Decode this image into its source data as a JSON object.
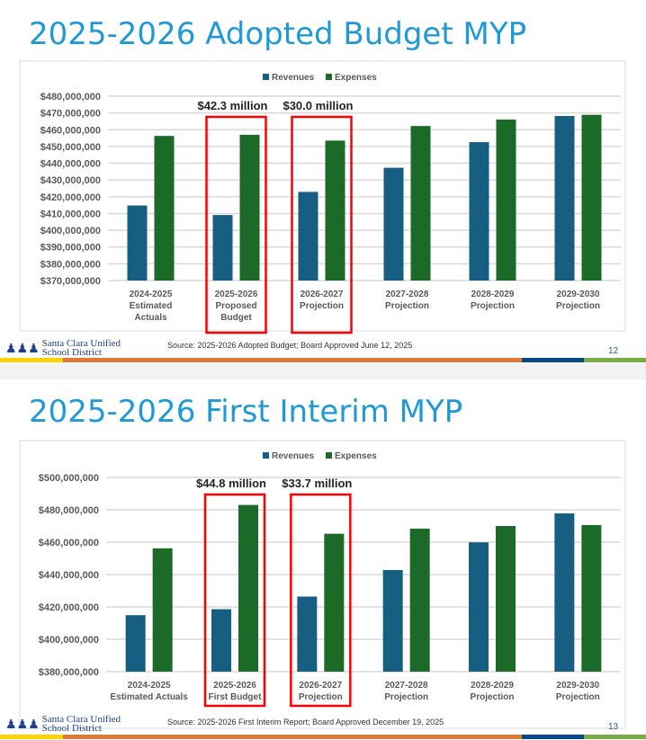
{
  "colors": {
    "revenues": "#165e82",
    "expenses": "#1b6a27",
    "highlight": "#ff0000",
    "title": "#1f9ad6"
  },
  "footer": {
    "logo_line1": "Santa Clara Unified",
    "logo_line2": "School District"
  },
  "slides": [
    {
      "title": "2025-2026 Adopted Budget MYP",
      "source": "Source:  2025-2026 Adopted Budget; Board Approved June 12, 2025",
      "page": "12"
    },
    {
      "title": "2025-2026 First Interim MYP",
      "source": "Source:  2025-2026 First Interim Report; Board Approved December 19, 2025",
      "page": "13"
    }
  ],
  "chart_data": [
    {
      "type": "bar",
      "legend_position": "top",
      "grid": true,
      "categories": [
        [
          "2024-2025",
          "Estimated",
          "Actuals"
        ],
        [
          "2025-2026",
          "Proposed",
          "Budget"
        ],
        [
          "2026-2027",
          "Projection"
        ],
        [
          "2027-2028",
          "Projection"
        ],
        [
          "2028-2029",
          "Projection"
        ],
        [
          "2029-2030",
          "Projection"
        ]
      ],
      "ylim": [
        370000000,
        480000000
      ],
      "yticks": [
        "$370,000,000",
        "$380,000,000",
        "$390,000,000",
        "$400,000,000",
        "$410,000,000",
        "$420,000,000",
        "$430,000,000",
        "$440,000,000",
        "$450,000,000",
        "$460,000,000",
        "$470,000,000",
        "$480,000,000"
      ],
      "series": [
        {
          "name": "Revenues",
          "values": [
            414800000,
            409100000,
            422900000,
            437300000,
            452600000,
            468200000
          ]
        },
        {
          "name": "Expenses",
          "values": [
            456300000,
            457000000,
            453500000,
            462200000,
            466100000,
            468900000
          ]
        }
      ],
      "annotations": [
        {
          "category_index": 1,
          "text": "$42.3 million"
        },
        {
          "category_index": 2,
          "text": "$30.0 million"
        }
      ]
    },
    {
      "type": "bar",
      "legend_position": "top",
      "grid": true,
      "categories": [
        [
          "2024-2025",
          "Estimated Actuals"
        ],
        [
          "2025-2026",
          "First Budget"
        ],
        [
          "2026-2027",
          "Projection"
        ],
        [
          "2027-2028",
          "Projection"
        ],
        [
          "2028-2029",
          "Projection"
        ],
        [
          "2029-2030",
          "Projection"
        ]
      ],
      "ylim": [
        380000000,
        500000000
      ],
      "yticks": [
        "$380,000,000",
        "$400,000,000",
        "$420,000,000",
        "$440,000,000",
        "$460,000,000",
        "$480,000,000",
        "$500,000,000"
      ],
      "series": [
        {
          "name": "Revenues",
          "values": [
            414900000,
            418600000,
            426400000,
            442800000,
            459900000,
            477800000
          ]
        },
        {
          "name": "Expenses",
          "values": [
            456200000,
            483000000,
            465200000,
            468400000,
            470000000,
            470600000
          ]
        }
      ],
      "annotations": [
        {
          "category_index": 1,
          "text": "$44.8 million"
        },
        {
          "category_index": 2,
          "text": "$33.7 million"
        }
      ]
    }
  ]
}
